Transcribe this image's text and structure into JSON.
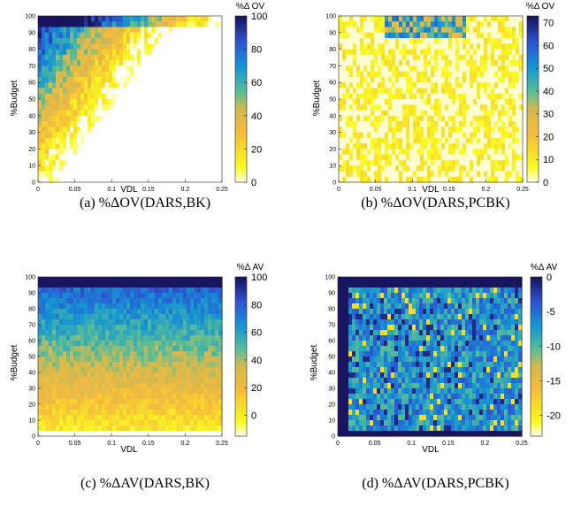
{
  "chart_data": [
    {
      "type": "heatmap",
      "xlabel": "VDL",
      "ylabel": "%Budget",
      "xlim": [
        0,
        0.25
      ],
      "ylim": [
        0,
        100
      ],
      "x_ticks": [
        "0",
        "0.05",
        "0.1",
        "0.15",
        "0.2",
        "0.25"
      ],
      "y_ticks": [
        "0",
        "10",
        "20",
        "30",
        "40",
        "50",
        "60",
        "70",
        "80",
        "90",
        "100"
      ],
      "colorbar": {
        "title": "%Δ OV",
        "ticks": [
          "0",
          "20",
          "40",
          "60",
          "80",
          "100"
        ],
        "range": [
          0,
          100
        ]
      },
      "colormap": "parula",
      "caption": "(a) %ΔOV(DARS,BK)"
    },
    {
      "type": "heatmap",
      "xlabel": "VDL",
      "ylabel": "%Budget",
      "xlim": [
        0,
        0.25
      ],
      "ylim": [
        0,
        100
      ],
      "x_ticks": [
        "0",
        "0.05",
        "0.1",
        "0.15",
        "0.2",
        "0.25"
      ],
      "y_ticks": [
        "0",
        "10",
        "20",
        "30",
        "40",
        "50",
        "60",
        "70",
        "80",
        "90",
        "100"
      ],
      "colorbar": {
        "title": "%Δ OV",
        "ticks": [
          "0",
          "10",
          "20",
          "30",
          "40",
          "50",
          "60",
          "70"
        ],
        "range": [
          0,
          73
        ]
      },
      "colormap": "parula",
      "caption": "(b) %ΔOV(DARS,PCBK)"
    },
    {
      "type": "heatmap",
      "xlabel": "VDL",
      "ylabel": "%Budget",
      "xlim": [
        0,
        0.25
      ],
      "ylim": [
        0,
        100
      ],
      "x_ticks": [
        "0",
        "0.05",
        "0.1",
        "0.15",
        "0.2",
        "0.25"
      ],
      "y_ticks": [
        "0",
        "10",
        "20",
        "30",
        "40",
        "50",
        "60",
        "70",
        "80",
        "90",
        "100"
      ],
      "colorbar": {
        "title": "%Δ AV",
        "ticks": [
          "0",
          "20",
          "40",
          "60",
          "80",
          "100"
        ],
        "range": [
          -15,
          100
        ]
      },
      "colormap": "parula",
      "caption": "(c) %ΔAV(DARS,BK)"
    },
    {
      "type": "heatmap",
      "xlabel": "VDL",
      "ylabel": "%Budget",
      "xlim": [
        0,
        0.25
      ],
      "ylim": [
        0,
        100
      ],
      "x_ticks": [
        "0",
        "0.05",
        "0.1",
        "0.15",
        "0.2",
        "0.25"
      ],
      "y_ticks": [
        "0",
        "10",
        "20",
        "30",
        "40",
        "50",
        "60",
        "70",
        "80",
        "90",
        "100"
      ],
      "colorbar": {
        "title": "%Δ AV",
        "ticks": [
          "0",
          "-5",
          "-10",
          "-15",
          "-20"
        ],
        "range": [
          -23,
          0
        ]
      },
      "colormap": "parula",
      "caption": "(d) %ΔAV(DARS,PCBK)"
    }
  ]
}
